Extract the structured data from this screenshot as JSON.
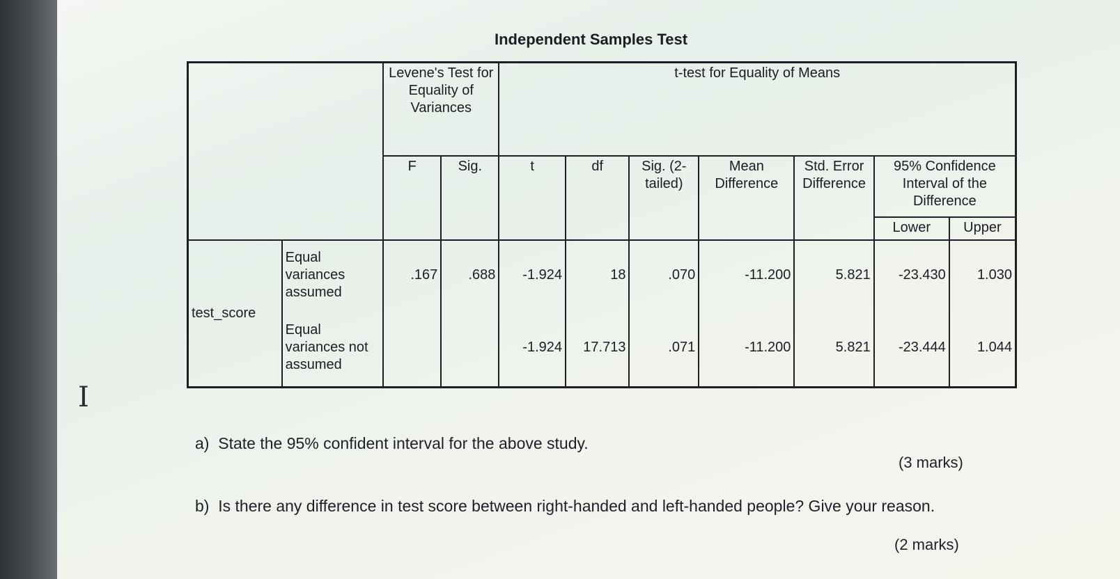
{
  "title": "Independent Samples Test",
  "header": {
    "levene": "Levene's Test for Equality of Variances",
    "ttest": "t-test for Equality of Means",
    "ci_group": "95% Confidence Interval of the Difference",
    "columns": {
      "f": "F",
      "sig": "Sig.",
      "t": "t",
      "df": "df",
      "sig2": "Sig. (2-tailed)",
      "mean_diff": "Mean Difference",
      "std_err": "Std. Error Difference",
      "lower": "Lower",
      "upper": "Upper"
    }
  },
  "variable": "test_score",
  "rows": [
    {
      "label": "Equal variances assumed",
      "f": ".167",
      "sig": ".688",
      "t": "-1.924",
      "df": "18",
      "sig2": ".070",
      "mean_diff": "-11.200",
      "std_err": "5.821",
      "lower": "-23.430",
      "upper": "1.030"
    },
    {
      "label": "Equal variances not assumed",
      "f": "",
      "sig": "",
      "t": "-1.924",
      "df": "17.713",
      "sig2": ".071",
      "mean_diff": "-11.200",
      "std_err": "5.821",
      "lower": "-23.444",
      "upper": "1.044"
    }
  ],
  "questions": [
    {
      "label": "a)",
      "text": "State the 95% confident interval for the above study.",
      "marks": "(3 marks)"
    },
    {
      "label": "b)",
      "text": "Is there any difference in test score between right-handed and left-handed people? Give your reason.",
      "marks": "(2 marks)"
    }
  ],
  "cursor_glyph": "I"
}
